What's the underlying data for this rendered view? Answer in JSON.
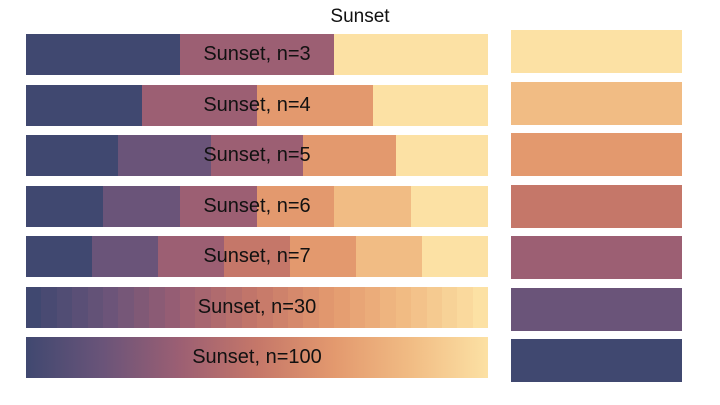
{
  "title": "Sunset",
  "palette": {
    "name": "Sunset",
    "colors": [
      "#fce1a4",
      "#f1bc84",
      "#e3996e",
      "#c57769",
      "#9c5f73",
      "#6a5479",
      "#404870"
    ]
  },
  "ramps": [
    {
      "label": "Sunset, n=3",
      "n": 3,
      "colors": [
        "#404870",
        "#9c5f73",
        "#fce1a4"
      ]
    },
    {
      "label": "Sunset, n=4",
      "n": 4,
      "colors": [
        "#404870",
        "#9c5f73",
        "#e3996e",
        "#fce1a4"
      ]
    },
    {
      "label": "Sunset, n=5",
      "n": 5,
      "colors": [
        "#404870",
        "#6a5479",
        "#9c5f73",
        "#e3996e",
        "#fce1a4"
      ]
    },
    {
      "label": "Sunset, n=6",
      "n": 6,
      "colors": [
        "#404870",
        "#6a5479",
        "#9c5f73",
        "#e3996e",
        "#f1bc84",
        "#fce1a4"
      ]
    },
    {
      "label": "Sunset, n=7",
      "n": 7,
      "colors": [
        "#404870",
        "#6a5479",
        "#9c5f73",
        "#c57769",
        "#e3996e",
        "#f1bc84",
        "#fce1a4"
      ]
    },
    {
      "label": "Sunset, n=30",
      "n": 30
    },
    {
      "label": "Sunset, n=100",
      "n": 100
    }
  ]
}
